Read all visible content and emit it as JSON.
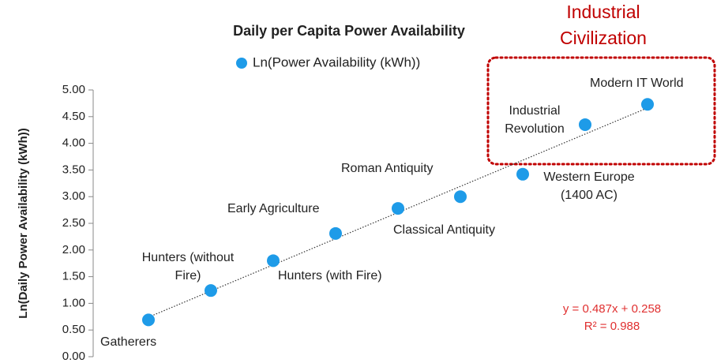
{
  "chart_data": {
    "type": "scatter",
    "title": "Daily per Capita Power Availability",
    "y_label": "Ln(Daily Power Availability (kWh))",
    "x": [
      1,
      2,
      3,
      4,
      5,
      6,
      7,
      8,
      9
    ],
    "series": [
      {
        "name": "Ln(Power Availability (kWh))",
        "color": "#1e9be8",
        "values": [
          0.69,
          1.24,
          1.8,
          2.31,
          2.78,
          3.0,
          3.42,
          4.35,
          4.73
        ]
      }
    ],
    "point_labels": [
      [
        "Gatherers"
      ],
      [
        "Hunters (without",
        "Fire)"
      ],
      [
        "Hunters (with Fire)"
      ],
      [
        "Early Agriculture"
      ],
      [
        "Classical Antiquity"
      ],
      [
        "Roman Antiquity"
      ],
      [
        "Western Europe",
        "(1400 AC)"
      ],
      [
        "Industrial",
        "Revolution"
      ],
      [
        "Modern IT World"
      ]
    ],
    "ylim": [
      0,
      5
    ],
    "yticks": [
      {
        "value": 0,
        "label": "0.00"
      },
      {
        "value": 0.5,
        "label": "0.50"
      },
      {
        "value": 1,
        "label": "1.00"
      },
      {
        "value": 1.5,
        "label": "1.50"
      },
      {
        "value": 2,
        "label": "2.00"
      },
      {
        "value": 2.5,
        "label": "2.50"
      },
      {
        "value": 3,
        "label": "3.00"
      },
      {
        "value": 3.5,
        "label": "3.50"
      },
      {
        "value": 4,
        "label": "4.00"
      },
      {
        "value": 4.5,
        "label": "4.50"
      },
      {
        "value": 5,
        "label": "5.00"
      }
    ],
    "trendline_equation": "y = 0.487x + 0.258",
    "trendline_r2": "R² = 0.988",
    "annotation": [
      "Industrial",
      "Civilization"
    ]
  }
}
